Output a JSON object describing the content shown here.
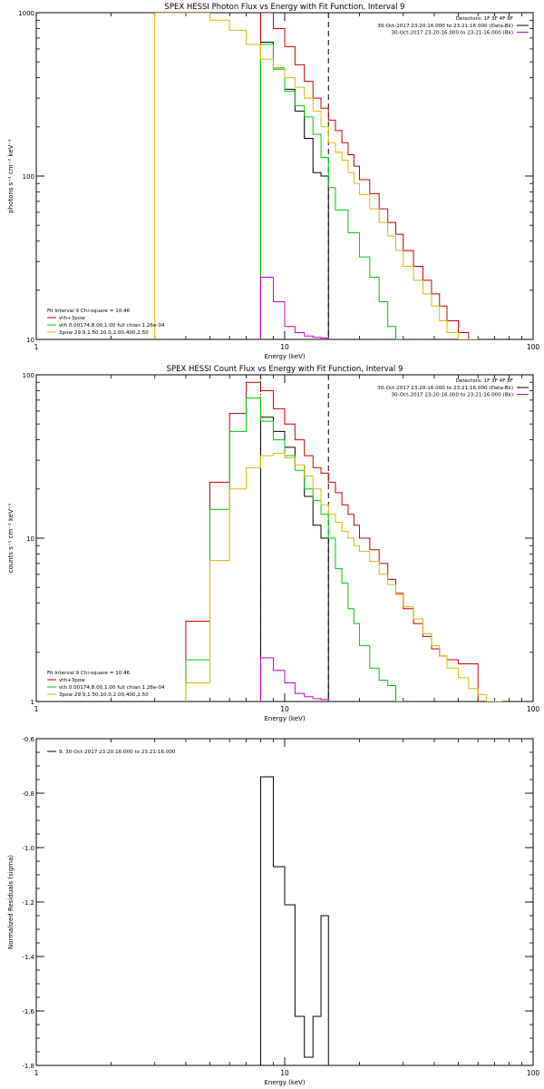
{
  "colors": {
    "data": "#000000",
    "total": "#cc0000",
    "vth": "#00cc00",
    "bpow": "#ddbb00",
    "background": "#cc00cc",
    "axes": "#000000"
  },
  "chart_data": [
    {
      "type": "line",
      "id": "photon",
      "title": "SPEX HESSI Photon Flux vs Energy with Fit Function, Interval 9",
      "xlabel": "Energy (keV)",
      "ylabel": "photons s⁻¹ cm⁻² keV⁻¹",
      "xscale": "log",
      "yscale": "log",
      "xlim": [
        1,
        100
      ],
      "ylim": [
        10,
        1000
      ],
      "xticks": [
        {
          "v": 1,
          "label": "1"
        },
        {
          "v": 10,
          "label": "10"
        },
        {
          "v": 100,
          "label": "100"
        }
      ],
      "yticks": [
        {
          "v": 10,
          "label": "10"
        },
        {
          "v": 100,
          "label": "100"
        },
        {
          "v": 1000,
          "label": "1000"
        }
      ],
      "vlines": [
        {
          "x": 8.0,
          "style": "dotted",
          "color": "vth"
        },
        {
          "x": 15.0,
          "style": "dashed",
          "color": "data"
        }
      ],
      "legend_right": {
        "header": "Detectors: 1F 3F 4F 8F",
        "entries": [
          {
            "label": "30-Oct-2017 23:20:16.000 to 23:21:16.000 (Data-Bk)",
            "color": "data"
          },
          {
            "label": "30-Oct-2017 23:20:16.000 to 23:21:16.000 (Bk)",
            "color": "background"
          }
        ]
      },
      "legend_left": {
        "header": "Fit Interval 9   Chi-square = 10.46",
        "entries": [
          {
            "label": "vth+3pow",
            "color": "total"
          },
          {
            "label": "vth 0.00174,8.00,1.00  full chian 1.26e-04",
            "color": "vth"
          },
          {
            "label": "3pow 29.9,1.50,10.0,2.00,400,2.50",
            "color": "bpow"
          }
        ]
      },
      "series": [
        {
          "color": "data",
          "edges": [
            8.0,
            9.0,
            10.0,
            11.0,
            12.0,
            13.0,
            14.0,
            15.0
          ],
          "values": [
            660,
            460,
            340,
            250,
            170,
            105,
            100
          ]
        },
        {
          "color": "total",
          "edges": [
            8.0,
            9.0,
            10.0,
            11.0,
            12.0,
            13.0,
            14.0,
            15.0,
            16.0,
            17.0,
            18.0,
            19.0,
            20.0,
            22.0,
            24.0,
            26.0,
            28.0,
            30.0,
            33.0,
            36.0,
            39.0,
            42.0,
            45.0,
            50.0,
            55.0,
            60.0
          ],
          "values": [
            1000,
            800,
            620,
            480,
            380,
            300,
            260,
            220,
            190,
            160,
            135,
            115,
            95,
            78,
            63,
            52,
            44,
            35,
            28,
            23,
            19,
            16,
            13,
            11,
            10
          ]
        },
        {
          "color": "vth",
          "edges": [
            8.0,
            9.0,
            10.0,
            11.0,
            12.0,
            13.0,
            14.0,
            15.0,
            16.0,
            18.0,
            20.0,
            22.0,
            24.0,
            26.0,
            28.0,
            30.0
          ],
          "values": [
            640,
            450,
            330,
            270,
            230,
            180,
            130,
            85,
            62,
            45,
            32,
            24,
            17,
            12,
            10
          ]
        },
        {
          "color": "bpow",
          "edges": [
            3.0,
            4.0,
            5.0,
            6.0,
            7.0,
            8.0,
            9.0,
            10.0,
            11.0,
            12.0,
            13.0,
            14.0,
            15.0,
            16.0,
            17.0,
            18.0,
            19.0,
            20.0,
            22.0,
            24.0,
            26.0,
            28.0,
            30.0,
            33.0,
            36.0,
            39.0,
            42.0,
            45.0,
            50.0,
            55.0,
            60.0
          ],
          "values": [
            1000,
            1000,
            900,
            780,
            640,
            520,
            460,
            400,
            350,
            300,
            250,
            200,
            160,
            140,
            125,
            105,
            90,
            77,
            63,
            52,
            43,
            35,
            28,
            23,
            19,
            16,
            13,
            11,
            10,
            10
          ]
        },
        {
          "color": "background",
          "edges": [
            8.0,
            9.0,
            10.0,
            11.0,
            12.0,
            13.0,
            14.0,
            15.0
          ],
          "values": [
            24,
            17,
            12,
            11,
            10.5,
            10.3,
            10.2
          ]
        }
      ]
    },
    {
      "type": "line",
      "id": "count",
      "title": "SPEX HESSI Count Flux vs Energy with Fit Function, Interval 9",
      "xlabel": "Energy (keV)",
      "ylabel": "counts s⁻¹ cm⁻² keV⁻¹",
      "xscale": "log",
      "yscale": "log",
      "xlim": [
        1,
        100
      ],
      "ylim": [
        1,
        100
      ],
      "xticks": [
        {
          "v": 1,
          "label": "1"
        },
        {
          "v": 10,
          "label": "10"
        },
        {
          "v": 100,
          "label": "100"
        }
      ],
      "yticks": [
        {
          "v": 1,
          "label": "1"
        },
        {
          "v": 10,
          "label": "10"
        },
        {
          "v": 100,
          "label": "100"
        }
      ],
      "vlines": [
        {
          "x": 8.0,
          "style": "dotted",
          "color": "data"
        },
        {
          "x": 15.0,
          "style": "dashed",
          "color": "data"
        }
      ],
      "legend_right": {
        "header": "Detectors: 1F 3F 4F 8F",
        "entries": [
          {
            "label": "30-Oct-2017 23:20:16.000 to 23:21:16.000 (Data-Bk)",
            "color": "data"
          },
          {
            "label": "30-Oct-2017 23:20:16.000 to 23:21:16.000 (Bk)",
            "color": "background"
          }
        ]
      },
      "legend_left": {
        "header": "Fit Interval 9   Chi-square = 10.46",
        "entries": [
          {
            "label": "vth+3pow",
            "color": "total"
          },
          {
            "label": "vth 0.00174,8.00,1.00  full chian 1.26e-04",
            "color": "vth"
          },
          {
            "label": "3pow 29.9,1.50,10.0,2.00,400,2.50",
            "color": "bpow"
          }
        ]
      },
      "series": [
        {
          "color": "data",
          "edges": [
            8.0,
            9.0,
            10.0,
            11.0,
            12.0,
            13.0,
            14.0,
            15.0
          ],
          "values": [
            55,
            45,
            36,
            28,
            18,
            12,
            10
          ]
        },
        {
          "color": "total",
          "edges": [
            4.0,
            5.0,
            6.0,
            7.0,
            8.0,
            9.0,
            10.0,
            11.0,
            12.0,
            13.0,
            14.0,
            15.0,
            16.0,
            17.0,
            18.0,
            19.0,
            20.0,
            22.0,
            24.0,
            26.0,
            28.0,
            30.0,
            33.0,
            36.0,
            39.0,
            42.0,
            45.0,
            50.0,
            55.0,
            60.0
          ],
          "values": [
            3.1,
            22,
            58,
            90,
            80,
            62,
            50,
            40,
            32,
            27,
            25,
            22,
            19,
            16,
            14,
            12,
            10,
            8.5,
            7,
            5.6,
            4.6,
            3.7,
            3.0,
            2.5,
            2.1,
            1.9,
            1.8,
            1.7,
            1.7
          ]
        },
        {
          "color": "vth",
          "edges": [
            4.0,
            5.0,
            6.0,
            7.0,
            8.0,
            9.0,
            10.0,
            11.0,
            12.0,
            13.0,
            14.0,
            15.0,
            16.0,
            17.0,
            18.0,
            19.0,
            20.0,
            22.0,
            24.0,
            26.0,
            28.0,
            30.0
          ],
          "values": [
            1.8,
            15,
            45,
            72,
            52,
            40,
            32,
            26,
            20,
            17,
            14,
            10,
            6.5,
            5.3,
            3.7,
            3.0,
            2.2,
            1.6,
            1.35,
            1.25,
            1.0
          ]
        },
        {
          "color": "bpow",
          "edges": [
            4.0,
            5.0,
            6.0,
            7.0,
            8.0,
            9.0,
            10.0,
            11.0,
            12.0,
            13.0,
            14.0,
            15.0,
            16.0,
            17.0,
            18.0,
            19.0,
            20.0,
            22.0,
            24.0,
            26.0,
            28.0,
            30.0,
            33.0,
            36.0,
            39.0,
            42.0,
            45.0,
            50.0,
            55.0,
            60.0,
            65.0,
            70.0,
            75.0
          ],
          "values": [
            1.3,
            7.3,
            20,
            27,
            32,
            33,
            31,
            28,
            24,
            20,
            16,
            14,
            12.5,
            11,
            10,
            9,
            8.3,
            7.2,
            6,
            5.2,
            4.5,
            3.8,
            3.2,
            2.6,
            2.2,
            1.9,
            1.6,
            1.4,
            1.2,
            1.1,
            1.0,
            0.9
          ]
        },
        {
          "color": "background",
          "edges": [
            8.0,
            9.0,
            10.0,
            11.0,
            12.0,
            13.0,
            14.0,
            15.0
          ],
          "values": [
            1.85,
            1.55,
            1.3,
            1.12,
            1.07,
            1.04,
            1.03
          ]
        }
      ]
    },
    {
      "type": "line",
      "id": "residuals",
      "title": "",
      "xlabel": "Energy (keV)",
      "ylabel": "Normalized Residuals (sigma)",
      "xscale": "log",
      "yscale": "linear",
      "xlim": [
        1,
        100
      ],
      "ylim": [
        -1.8,
        -0.6
      ],
      "xticks": [
        {
          "v": 1,
          "label": "1"
        },
        {
          "v": 10,
          "label": "10"
        },
        {
          "v": 100,
          "label": "100"
        }
      ],
      "yticks": [
        {
          "v": -1.8,
          "label": "-1.8"
        },
        {
          "v": -1.6,
          "label": "-1.6"
        },
        {
          "v": -1.4,
          "label": "-1.4"
        },
        {
          "v": -1.2,
          "label": "-1.2"
        },
        {
          "v": -1.0,
          "label": "-1.0"
        },
        {
          "v": -0.8,
          "label": "-0.8"
        },
        {
          "v": -0.6,
          "label": "-0.6"
        }
      ],
      "vlines": [],
      "legend_left": {
        "header": "",
        "entries": [
          {
            "label": "9. 30-Oct-2017 23:20:16.000 to 23:21:16.000",
            "color": "data"
          }
        ]
      },
      "series": [
        {
          "color": "data",
          "closed": true,
          "edges": [
            8.0,
            9.0,
            10.0,
            11.0,
            12.0,
            13.0,
            14.0,
            15.0
          ],
          "values": [
            -0.74,
            -1.07,
            -1.21,
            -1.62,
            -1.77,
            -1.62,
            -1.25
          ]
        }
      ]
    }
  ]
}
